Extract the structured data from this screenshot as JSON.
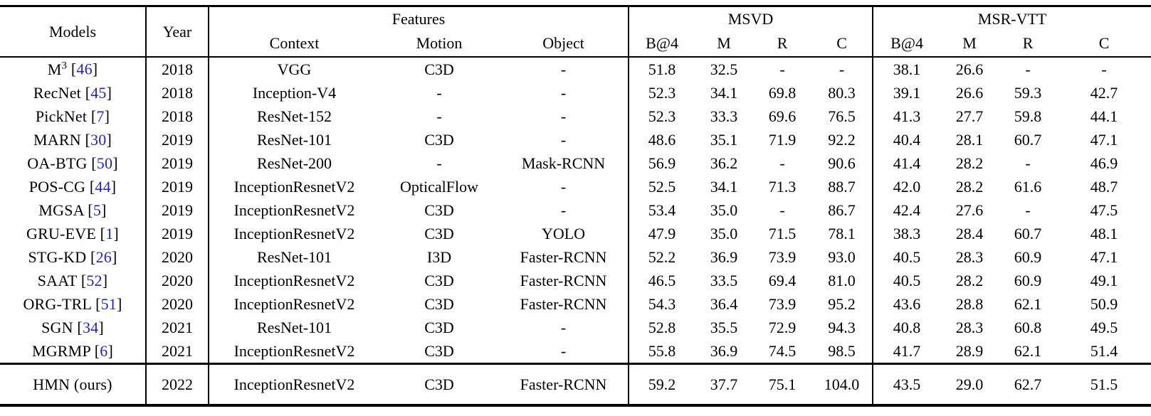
{
  "table": {
    "colors": {
      "citation": "#2222CC",
      "rule": "#000000"
    },
    "header": {
      "models": "Models",
      "year": "Year",
      "features": "Features",
      "msvd": "MSVD",
      "msrvtt": "MSR-VTT",
      "context": "Context",
      "motion": "Motion",
      "object": "Object",
      "metrics": [
        "B@4",
        "M",
        "R",
        "C"
      ]
    },
    "rows": [
      {
        "name": "M",
        "sup": "3",
        "cite": "46",
        "year": "2018",
        "context": "VGG",
        "motion": "C3D",
        "object": "-",
        "msvd": [
          "51.8",
          "32.5",
          "-",
          "-"
        ],
        "msrvtt": [
          "38.1",
          "26.6",
          "-",
          "-"
        ],
        "bold_msvd": [],
        "bold_msrvtt": []
      },
      {
        "name": "RecNet",
        "sup": "",
        "cite": "45",
        "year": "2018",
        "context": "Inception-V4",
        "motion": "-",
        "object": "-",
        "msvd": [
          "52.3",
          "34.1",
          "69.8",
          "80.3"
        ],
        "msrvtt": [
          "39.1",
          "26.6",
          "59.3",
          "42.7"
        ],
        "bold_msvd": [],
        "bold_msrvtt": []
      },
      {
        "name": "PickNet",
        "sup": "",
        "cite": "7",
        "year": "2018",
        "context": "ResNet-152",
        "motion": "-",
        "object": "-",
        "msvd": [
          "52.3",
          "33.3",
          "69.6",
          "76.5"
        ],
        "msrvtt": [
          "41.3",
          "27.7",
          "59.8",
          "44.1"
        ],
        "bold_msvd": [],
        "bold_msrvtt": []
      },
      {
        "name": "MARN",
        "sup": "",
        "cite": "30",
        "year": "2019",
        "context": "ResNet-101",
        "motion": "C3D",
        "object": "-",
        "msvd": [
          "48.6",
          "35.1",
          "71.9",
          "92.2"
        ],
        "msrvtt": [
          "40.4",
          "28.1",
          "60.7",
          "47.1"
        ],
        "bold_msvd": [],
        "bold_msrvtt": []
      },
      {
        "name": "OA-BTG",
        "sup": "",
        "cite": "50",
        "year": "2019",
        "context": "ResNet-200",
        "motion": "-",
        "object": "Mask-RCNN",
        "msvd": [
          "56.9",
          "36.2",
          "-",
          "90.6"
        ],
        "msrvtt": [
          "41.4",
          "28.2",
          "-",
          "46.9"
        ],
        "bold_msvd": [],
        "bold_msrvtt": []
      },
      {
        "name": "POS-CG",
        "sup": "",
        "cite": "44",
        "year": "2019",
        "context": "InceptionResnetV2",
        "motion": "OpticalFlow",
        "object": "-",
        "msvd": [
          "52.5",
          "34.1",
          "71.3",
          "88.7"
        ],
        "msrvtt": [
          "42.0",
          "28.2",
          "61.6",
          "48.7"
        ],
        "bold_msvd": [],
        "bold_msrvtt": []
      },
      {
        "name": "MGSA",
        "sup": "",
        "cite": "5",
        "year": "2019",
        "context": "InceptionResnetV2",
        "motion": "C3D",
        "object": "-",
        "msvd": [
          "53.4",
          "35.0",
          "-",
          "86.7"
        ],
        "msrvtt": [
          "42.4",
          "27.6",
          "-",
          "47.5"
        ],
        "bold_msvd": [],
        "bold_msrvtt": []
      },
      {
        "name": "GRU-EVE",
        "sup": "",
        "cite": "1",
        "year": "2019",
        "context": "InceptionResnetV2",
        "motion": "C3D",
        "object": "YOLO",
        "msvd": [
          "47.9",
          "35.0",
          "71.5",
          "78.1"
        ],
        "msrvtt": [
          "38.3",
          "28.4",
          "60.7",
          "48.1"
        ],
        "bold_msvd": [],
        "bold_msrvtt": []
      },
      {
        "name": "STG-KD",
        "sup": "",
        "cite": "26",
        "year": "2020",
        "context": "ResNet-101",
        "motion": "I3D",
        "object": "Faster-RCNN",
        "msvd": [
          "52.2",
          "36.9",
          "73.9",
          "93.0"
        ],
        "msrvtt": [
          "40.5",
          "28.3",
          "60.9",
          "47.1"
        ],
        "bold_msvd": [],
        "bold_msrvtt": []
      },
      {
        "name": "SAAT",
        "sup": "",
        "cite": "52",
        "year": "2020",
        "context": "InceptionResnetV2",
        "motion": "C3D",
        "object": "Faster-RCNN",
        "msvd": [
          "46.5",
          "33.5",
          "69.4",
          "81.0"
        ],
        "msrvtt": [
          "40.5",
          "28.2",
          "60.9",
          "49.1"
        ],
        "bold_msvd": [],
        "bold_msrvtt": []
      },
      {
        "name": "ORG-TRL",
        "sup": "",
        "cite": "51",
        "year": "2020",
        "context": "InceptionResnetV2",
        "motion": "C3D",
        "object": "Faster-RCNN",
        "msvd": [
          "54.3",
          "36.4",
          "73.9",
          "95.2"
        ],
        "msrvtt": [
          "43.6",
          "28.8",
          "62.1",
          "50.9"
        ],
        "bold_msvd": [],
        "bold_msrvtt": [
          0
        ]
      },
      {
        "name": "SGN",
        "sup": "",
        "cite": "34",
        "year": "2021",
        "context": "ResNet-101",
        "motion": "C3D",
        "object": "-",
        "msvd": [
          "52.8",
          "35.5",
          "72.9",
          "94.3"
        ],
        "msrvtt": [
          "40.8",
          "28.3",
          "60.8",
          "49.5"
        ],
        "bold_msvd": [],
        "bold_msrvtt": []
      },
      {
        "name": "MGRMP",
        "sup": "",
        "cite": "6",
        "year": "2021",
        "context": "InceptionResnetV2",
        "motion": "C3D",
        "object": "-",
        "msvd": [
          "55.8",
          "36.9",
          "74.5",
          "98.5"
        ],
        "msrvtt": [
          "41.7",
          "28.9",
          "62.1",
          "51.4"
        ],
        "bold_msvd": [],
        "bold_msrvtt": []
      }
    ],
    "final_row": {
      "name": "HMN (ours)",
      "sup": "",
      "cite": "",
      "year": "2022",
      "context": "InceptionResnetV2",
      "motion": "C3D",
      "object": "Faster-RCNN",
      "msvd": [
        "59.2",
        "37.7",
        "75.1",
        "104.0"
      ],
      "msrvtt": [
        "43.5",
        "29.0",
        "62.7",
        "51.5"
      ],
      "bold_msvd": [
        0,
        1,
        2,
        3
      ],
      "bold_msrvtt": [
        1,
        2,
        3
      ]
    }
  }
}
